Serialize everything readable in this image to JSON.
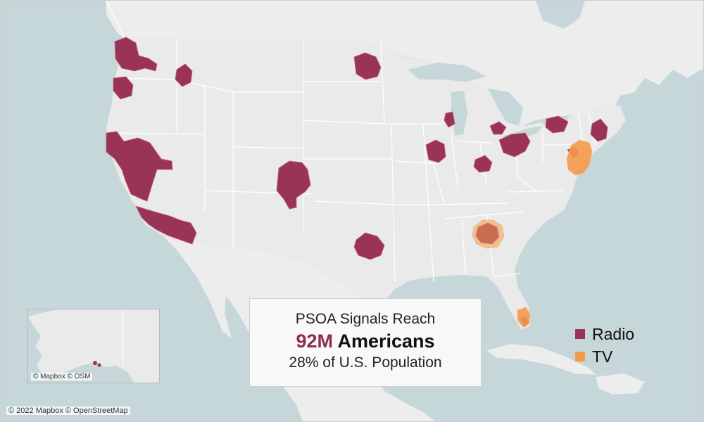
{
  "map": {
    "base_colors": {
      "water": "#c5d7d9",
      "land": "#eaeaea",
      "land_other": "#ededed",
      "border": "#ffffff"
    },
    "coverage_areas": [
      {
        "name": "Seattle",
        "type": "radio"
      },
      {
        "name": "Portland",
        "type": "radio"
      },
      {
        "name": "Spokane",
        "type": "radio"
      },
      {
        "name": "Northern California",
        "type": "radio"
      },
      {
        "name": "Southern California",
        "type": "radio"
      },
      {
        "name": "Denver",
        "type": "radio"
      },
      {
        "name": "Dallas",
        "type": "radio"
      },
      {
        "name": "Minneapolis",
        "type": "radio"
      },
      {
        "name": "Milwaukee",
        "type": "radio"
      },
      {
        "name": "Iowa",
        "type": "radio"
      },
      {
        "name": "Indianapolis",
        "type": "radio"
      },
      {
        "name": "Detroit",
        "type": "radio"
      },
      {
        "name": "Ohio",
        "type": "radio"
      },
      {
        "name": "Western New York",
        "type": "radio"
      },
      {
        "name": "New England",
        "type": "radio"
      },
      {
        "name": "Pennsylvania",
        "type": "radio"
      },
      {
        "name": "Atlanta",
        "type": "radio"
      },
      {
        "name": "Miami",
        "type": "radio"
      },
      {
        "name": "Atlanta TV",
        "type": "tv"
      },
      {
        "name": "Mid-Atlantic",
        "type": "tv"
      },
      {
        "name": "South Florida",
        "type": "tv"
      }
    ]
  },
  "inset": {
    "attribution": "© Mapbox © OSM"
  },
  "attribution": "© 2022 Mapbox © OpenStreetMap",
  "callout": {
    "title": "PSOA Signals Reach",
    "headline_number": "92M",
    "headline_word": "Americans",
    "subtitle": "28% of U.S. Population"
  },
  "legend": {
    "items": [
      {
        "label": "Radio",
        "color": "#9a3457"
      },
      {
        "label": "TV",
        "color": "#f39a4a"
      }
    ]
  }
}
